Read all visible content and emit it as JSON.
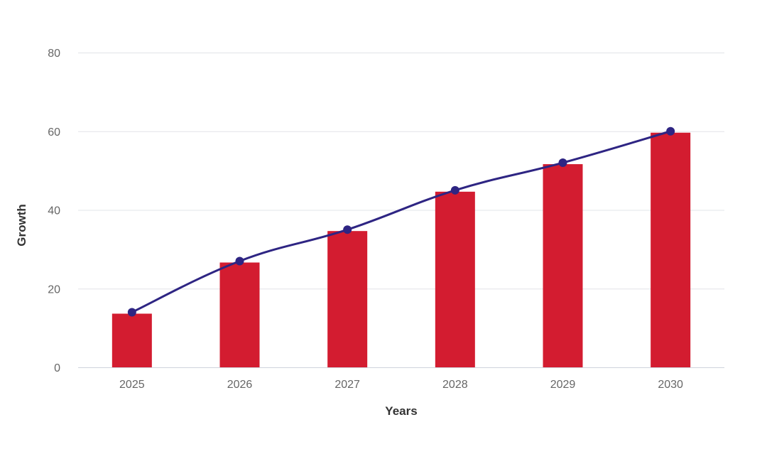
{
  "chart_data": {
    "type": "bar+line",
    "title": "",
    "xlabel": "Years",
    "ylabel": "Growth",
    "categories": [
      "2025",
      "2026",
      "2027",
      "2028",
      "2029",
      "2030"
    ],
    "series": [
      {
        "type": "bar",
        "values": [
          14,
          27,
          35,
          45,
          52,
          60
        ],
        "color": "#d31c30"
      },
      {
        "type": "line",
        "smooth": true,
        "markers": true,
        "values": [
          14,
          27,
          35,
          45,
          52,
          60
        ],
        "color": "#2e2583"
      }
    ],
    "ylim": [
      0,
      80
    ],
    "yticks": [
      0,
      20,
      40,
      60,
      80
    ],
    "grid": true,
    "legend": "none"
  }
}
